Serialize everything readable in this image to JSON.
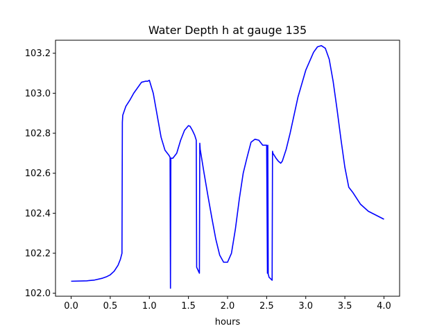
{
  "chart_data": {
    "type": "line",
    "title": "Water Depth h at gauge 135",
    "xlabel": "hours",
    "ylabel": "",
    "xlim": [
      -0.2,
      4.2
    ],
    "ylim": [
      101.985,
      103.265
    ],
    "xticks": [
      0.0,
      0.5,
      1.0,
      1.5,
      2.0,
      2.5,
      3.0,
      3.5,
      4.0
    ],
    "xtick_labels": [
      "0.0",
      "0.5",
      "1.0",
      "1.5",
      "2.0",
      "2.5",
      "3.0",
      "3.5",
      "4.0"
    ],
    "yticks": [
      102.0,
      102.2,
      102.4,
      102.6,
      102.8,
      103.0,
      103.2
    ],
    "ytick_labels": [
      "102.0",
      "102.2",
      "102.4",
      "102.6",
      "102.8",
      "103.0",
      "103.2"
    ],
    "grid": false,
    "line_color": "#0000ff",
    "series": [
      {
        "x": [
          0.0,
          0.2,
          0.3,
          0.4,
          0.45,
          0.5,
          0.55,
          0.6,
          0.63,
          0.65,
          0.655,
          0.66,
          0.7,
          0.75,
          0.8,
          0.9,
          0.95,
          0.98,
          1.0,
          1.05,
          1.1,
          1.15,
          1.2,
          1.25,
          1.265,
          1.27,
          1.275,
          1.3,
          1.35,
          1.4,
          1.45,
          1.5,
          1.52,
          1.55,
          1.58,
          1.6,
          1.605,
          1.64,
          1.645,
          1.65,
          1.7,
          1.75,
          1.8,
          1.85,
          1.9,
          1.95,
          2.0,
          2.05,
          2.1,
          2.15,
          2.2,
          2.25,
          2.3,
          2.35,
          2.4,
          2.45,
          2.5,
          2.51,
          2.515,
          2.52,
          2.525,
          2.53,
          2.57,
          2.575,
          2.58,
          2.62,
          2.65,
          2.68,
          2.7,
          2.75,
          2.8,
          2.9,
          3.0,
          3.1,
          3.15,
          3.2,
          3.25,
          3.3,
          3.35,
          3.4,
          3.45,
          3.5,
          3.55,
          3.6,
          3.7,
          3.8,
          3.9,
          4.0
        ],
        "y": [
          102.06,
          102.062,
          102.066,
          102.075,
          102.082,
          102.092,
          102.11,
          102.14,
          102.17,
          102.2,
          102.855,
          102.89,
          102.935,
          102.965,
          103.0,
          103.055,
          103.06,
          103.06,
          103.065,
          103.0,
          102.89,
          102.78,
          102.715,
          102.69,
          102.68,
          102.025,
          102.675,
          102.675,
          102.7,
          102.765,
          102.815,
          102.838,
          102.835,
          102.815,
          102.79,
          102.765,
          102.13,
          102.1,
          102.75,
          102.72,
          102.6,
          102.485,
          102.375,
          102.27,
          102.19,
          102.155,
          102.155,
          102.2,
          102.32,
          102.47,
          102.6,
          102.68,
          102.755,
          102.77,
          102.765,
          102.74,
          102.74,
          102.1,
          102.74,
          102.095,
          102.09,
          102.08,
          102.065,
          102.71,
          102.7,
          102.675,
          102.66,
          102.65,
          102.66,
          102.72,
          102.8,
          102.98,
          103.115,
          103.205,
          103.232,
          103.238,
          103.225,
          103.17,
          103.06,
          102.92,
          102.77,
          102.63,
          102.53,
          102.505,
          102.445,
          102.41,
          102.39,
          102.37
        ]
      }
    ]
  }
}
